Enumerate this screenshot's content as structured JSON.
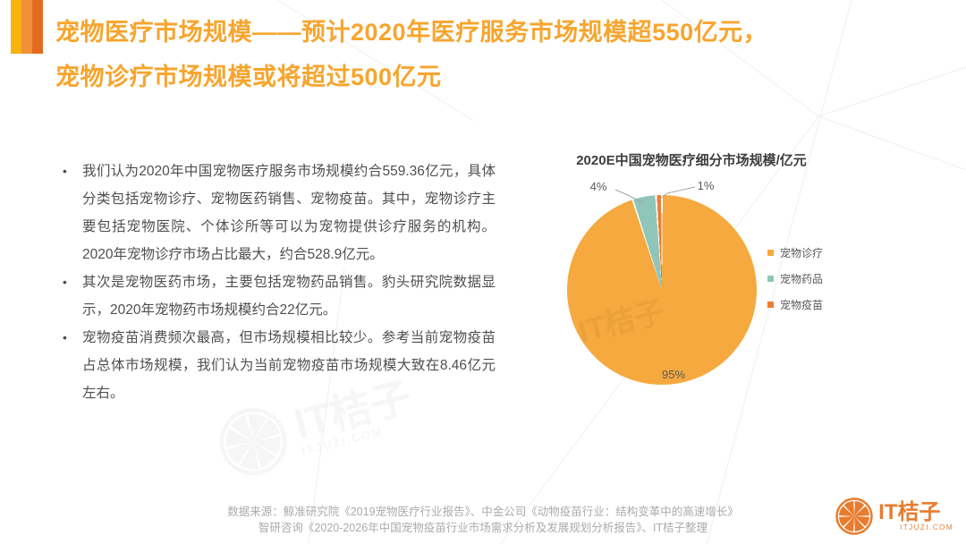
{
  "slide": {
    "title_line1": "宠物医疗市场规模——预计2020年医疗服务市场规模超550亿元，",
    "title_line2": "宠物诊疗市场规模或将超过500亿元"
  },
  "bullets": [
    "我们认为2020年中国宠物医疗服务市场规模约合559.36亿元，具体分类包括宠物诊疗、宠物医药销售、宠物疫苗。其中，宠物诊疗主要包括宠物医院、个体诊所等可以为宠物提供诊疗服务的机构。2020年宠物诊疗市场占比最大，约合528.9亿元。",
    "其次是宠物医药市场，主要包括宠物药品销售。豹头研究院数据显示，2020年宠物药市场规模约合22亿元。",
    "宠物疫苗消费频次最高，但市场规模相比较少。参考当前宠物疫苗占总体市场规模，我们认为当前宠物疫苗市场规模大致在8.46亿元左右。"
  ],
  "chart_data": {
    "type": "pie",
    "title": "2020E中国宠物医疗细分市场规模/亿元",
    "unit": "亿元",
    "start_angle_deg": 0,
    "direction": "clockwise",
    "legend_position": "right",
    "slices": [
      {
        "label": "宠物诊疗",
        "value": 95,
        "pct_label": "95%",
        "color": "#F5A93F"
      },
      {
        "label": "宠物药品",
        "value": 4,
        "pct_label": "4%",
        "color": "#8FC6B9"
      },
      {
        "label": "宠物疫苗",
        "value": 1,
        "pct_label": "1%",
        "color": "#ED7D31"
      }
    ]
  },
  "footer": {
    "source_line1": "数据来源：鲸准研究院《2019宠物医疗行业报告》、中金公司《动物疫苗行业：结构变革中的高速增长》",
    "source_line2": "智研咨询《2020-2026年中国宠物疫苗行业市场需求分析及发展规划分析报告》、IT桔子整理"
  },
  "logo": {
    "name": "IT桔子",
    "domain": "ITJUZI.COM"
  },
  "watermark": {
    "text": "IT桔子",
    "sub": "ITJUZI.COM"
  },
  "colors": {
    "title_orange": "#F7A52E",
    "stripe_gold": "#F7B30E",
    "stripe_orange": "#F0913A",
    "stripe_deep_orange": "#E56B1F",
    "body_text": "#4F4F4F",
    "chart_title_text": "#3D3D3D",
    "legend_text": "#595959",
    "footer_text": "#ABABAB",
    "logo_orange": "#E87C2E"
  }
}
